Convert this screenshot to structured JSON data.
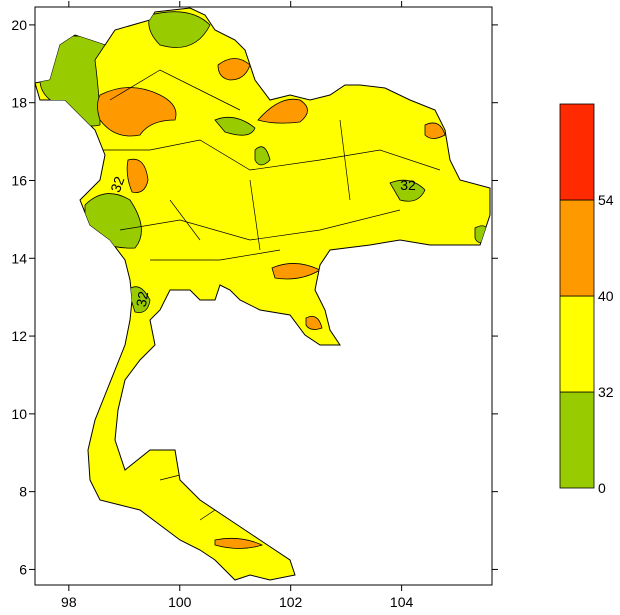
{
  "map": {
    "xlim": [
      97.39,
      105.63
    ],
    "ylim": [
      5.6,
      20.46
    ],
    "xticks": [
      98,
      100,
      102,
      104
    ],
    "yticks": [
      6,
      8,
      10,
      12,
      14,
      16,
      18,
      20
    ],
    "colorbar": {
      "levels": [
        0,
        32,
        40,
        54
      ],
      "colors": [
        "#99cc00",
        "#ffff00",
        "#ff9900",
        "#ff2a00"
      ]
    },
    "contour_labels": [
      "32",
      "32",
      "32"
    ]
  }
}
